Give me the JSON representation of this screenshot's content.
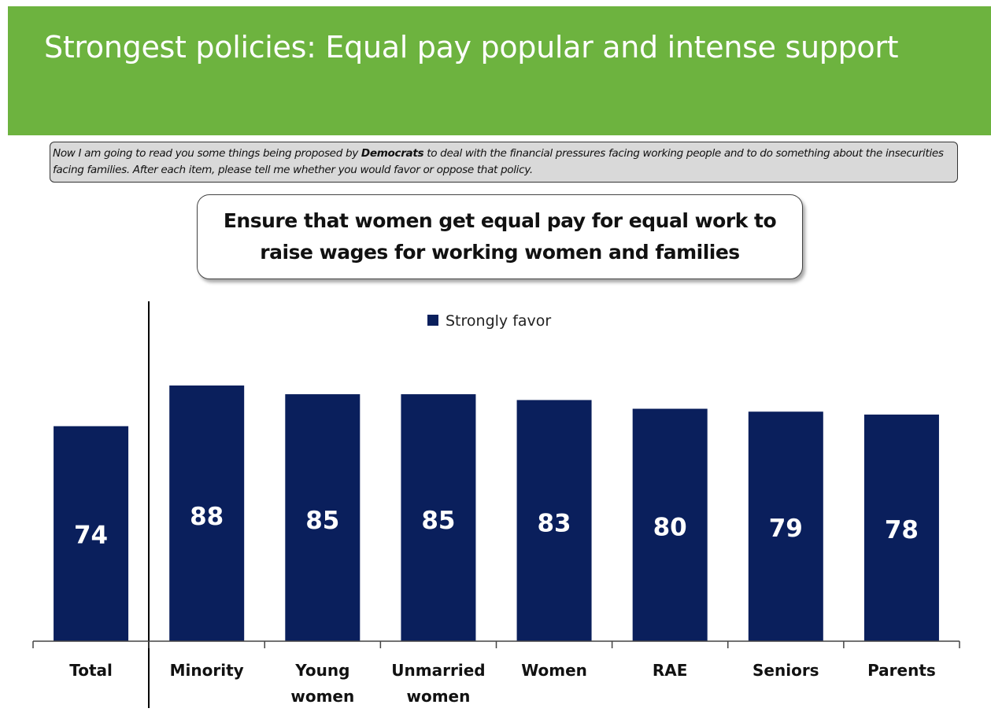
{
  "header": {
    "title": "Strongest policies: Equal pay popular and intense support"
  },
  "question": {
    "before": "Now I am going to read you some things being proposed by ",
    "bold": "Democrats",
    "after": " to deal with the financial pressures facing working people and to do something about the insecurities facing families. After each item, please tell me whether you would favor or oppose that policy."
  },
  "item": {
    "line1": "Ensure that women get equal pay for equal work to",
    "line2": "raise wages for working women and families"
  },
  "colors": {
    "header_bg": "#6db33f",
    "bar": "#0a1f5c"
  },
  "chart_data": {
    "type": "bar",
    "categories": [
      "Total",
      "Minority",
      "Young women",
      "Unmarried women",
      "Women",
      "RAE",
      "Seniors",
      "Parents"
    ],
    "category_lines": [
      [
        "Total"
      ],
      [
        "Minority"
      ],
      [
        "Young",
        "women"
      ],
      [
        "Unmarried",
        "women"
      ],
      [
        "Women"
      ],
      [
        "RAE"
      ],
      [
        "Seniors"
      ],
      [
        "Parents"
      ]
    ],
    "series": [
      {
        "name": "Strongly favor",
        "values": [
          74,
          88,
          85,
          85,
          83,
          80,
          79,
          78
        ]
      }
    ],
    "data_labels": true,
    "legend_position": "top-center",
    "ylim": [
      0,
      88
    ],
    "grid": false,
    "separator_after": "Total"
  }
}
